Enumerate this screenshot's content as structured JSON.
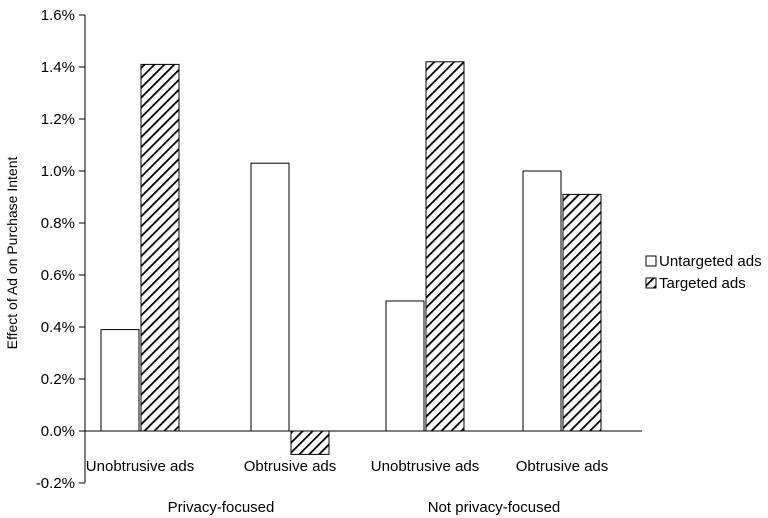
{
  "chart_data": {
    "type": "bar",
    "title": "",
    "xlabel": "",
    "ylabel": "Effect of Ad on Purchase Intent",
    "ylim": [
      -0.2,
      1.6
    ],
    "yticks": [
      -0.2,
      0.0,
      0.2,
      0.4,
      0.6,
      0.8,
      1.0,
      1.2,
      1.4,
      1.6
    ],
    "ytick_labels": [
      "-0.2%",
      "0.0%",
      "0.2%",
      "0.4%",
      "0.6%",
      "0.8%",
      "1.0%",
      "1.2%",
      "1.4%",
      "1.6%"
    ],
    "y_unit": "%",
    "grid": false,
    "legend_position": "right",
    "categories": [
      "Unobtrusive ads",
      "Obtrusive ads",
      "Unobtrusive ads",
      "Obtrusive ads"
    ],
    "groups": [
      {
        "label": "Privacy-focused",
        "category_indices": [
          0,
          1
        ]
      },
      {
        "label": "Not privacy-focused",
        "category_indices": [
          2,
          3
        ]
      }
    ],
    "series": [
      {
        "name": "Untargeted ads",
        "fill": "white",
        "values": [
          0.39,
          1.03,
          0.5,
          1.0
        ]
      },
      {
        "name": "Targeted ads",
        "fill": "diagonal-hatch",
        "values": [
          1.41,
          -0.09,
          1.42,
          0.91
        ]
      }
    ]
  },
  "colors": {
    "bar_stroke": "#000000",
    "untargeted_fill": "#ffffff",
    "hatch": "#000000"
  }
}
